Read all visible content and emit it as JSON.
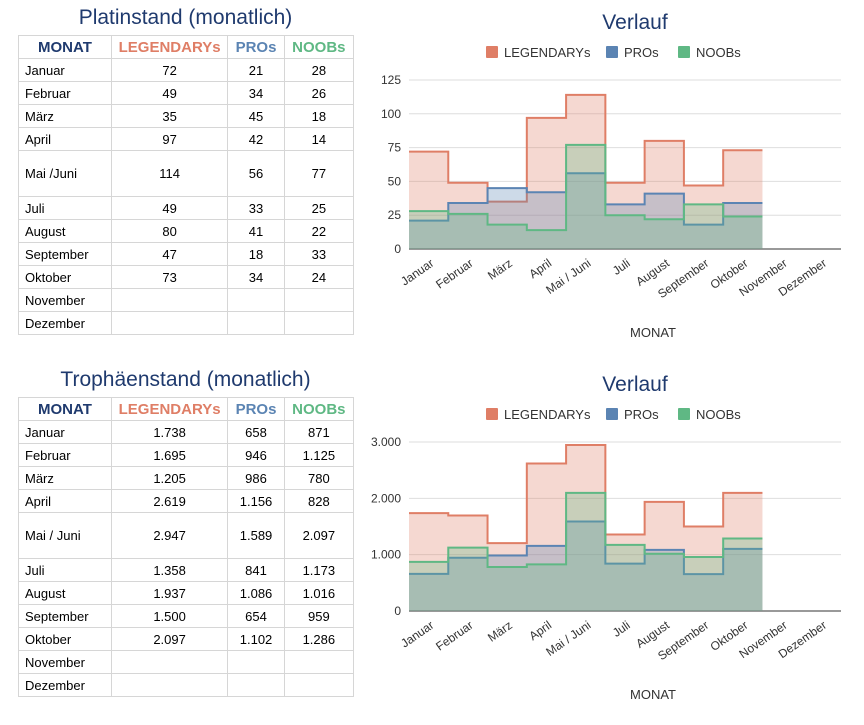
{
  "colors": {
    "legendary": "#df7e66",
    "pro": "#5b84b3",
    "noob": "#5fb884",
    "title": "#1f3a6e",
    "grid": "#dedede"
  },
  "platinum": {
    "table_title": "Platinstand (monatlich)",
    "headers": [
      "MONAT",
      "LEGENDARYs",
      "PROs",
      "NOOBs"
    ],
    "rows": [
      [
        "Januar",
        "72",
        "21",
        "28"
      ],
      [
        "Februar",
        "49",
        "34",
        "26"
      ],
      [
        "März",
        "35",
        "45",
        "18"
      ],
      [
        "April",
        "97",
        "42",
        "14"
      ],
      [
        "Mai /Juni",
        "114",
        "56",
        "77"
      ],
      [
        "Juli",
        "49",
        "33",
        "25"
      ],
      [
        "August",
        "80",
        "41",
        "22"
      ],
      [
        "September",
        "47",
        "18",
        "33"
      ],
      [
        "Oktober",
        "73",
        "34",
        "24"
      ],
      [
        "November",
        "",
        "",
        ""
      ],
      [
        "Dezember",
        "",
        "",
        ""
      ]
    ]
  },
  "trophy": {
    "table_title": "Trophäenstand (monatlich)",
    "headers": [
      "MONAT",
      "LEGENDARYs",
      "PROs",
      "NOOBs"
    ],
    "rows": [
      [
        "Januar",
        "1.738",
        "658",
        "871"
      ],
      [
        "Februar",
        "1.695",
        "946",
        "1.125"
      ],
      [
        "März",
        "1.205",
        "986",
        "780"
      ],
      [
        "April",
        "2.619",
        "1.156",
        "828"
      ],
      [
        "Mai / Juni",
        "2.947",
        "1.589",
        "2.097"
      ],
      [
        "Juli",
        "1.358",
        "841",
        "1.173"
      ],
      [
        "August",
        "1.937",
        "1.086",
        "1.016"
      ],
      [
        "September",
        "1.500",
        "654",
        "959"
      ],
      [
        "Oktober",
        "2.097",
        "1.102",
        "1.286"
      ],
      [
        "November",
        "",
        "",
        ""
      ],
      [
        "Dezember",
        "",
        "",
        ""
      ]
    ]
  },
  "chart_data": [
    {
      "type": "area",
      "title": "Verlauf",
      "xlabel": "MONAT",
      "ylabel": "",
      "ylim": [
        0,
        125
      ],
      "yticks": [
        0,
        25,
        50,
        75,
        100,
        125
      ],
      "ytick_labels": [
        "0",
        "25",
        "50",
        "75",
        "100",
        "125"
      ],
      "grid": true,
      "legend": "top",
      "categories": [
        "Januar",
        "Februar",
        "März",
        "April",
        "Mai / Juni",
        "Juli",
        "August",
        "September",
        "Oktober",
        "November",
        "Dezember"
      ],
      "series": [
        {
          "name": "LEGENDARYs",
          "values": [
            72,
            49,
            35,
            97,
            114,
            49,
            80,
            47,
            73,
            null,
            null
          ]
        },
        {
          "name": "PROs",
          "values": [
            21,
            34,
            45,
            42,
            56,
            33,
            41,
            18,
            34,
            null,
            null
          ]
        },
        {
          "name": "NOOBs",
          "values": [
            28,
            26,
            18,
            14,
            77,
            25,
            22,
            33,
            24,
            null,
            null
          ]
        }
      ]
    },
    {
      "type": "area",
      "title": "Verlauf",
      "xlabel": "MONAT",
      "ylabel": "",
      "ylim": [
        0,
        3000
      ],
      "yticks": [
        0,
        1000,
        2000,
        3000
      ],
      "ytick_labels": [
        "0",
        "1.000",
        "2.000",
        "3.000"
      ],
      "grid": true,
      "legend": "top",
      "categories": [
        "Januar",
        "Februar",
        "März",
        "April",
        "Mai / Juni",
        "Juli",
        "August",
        "September",
        "Oktober",
        "November",
        "Dezember"
      ],
      "series": [
        {
          "name": "LEGENDARYs",
          "values": [
            1738,
            1695,
            1205,
            2619,
            2947,
            1358,
            1937,
            1500,
            2097,
            null,
            null
          ]
        },
        {
          "name": "PROs",
          "values": [
            658,
            946,
            986,
            1156,
            1589,
            841,
            1086,
            654,
            1102,
            null,
            null
          ]
        },
        {
          "name": "NOOBs",
          "values": [
            871,
            1125,
            780,
            828,
            2097,
            1173,
            1016,
            959,
            1286,
            null,
            null
          ]
        }
      ]
    }
  ]
}
